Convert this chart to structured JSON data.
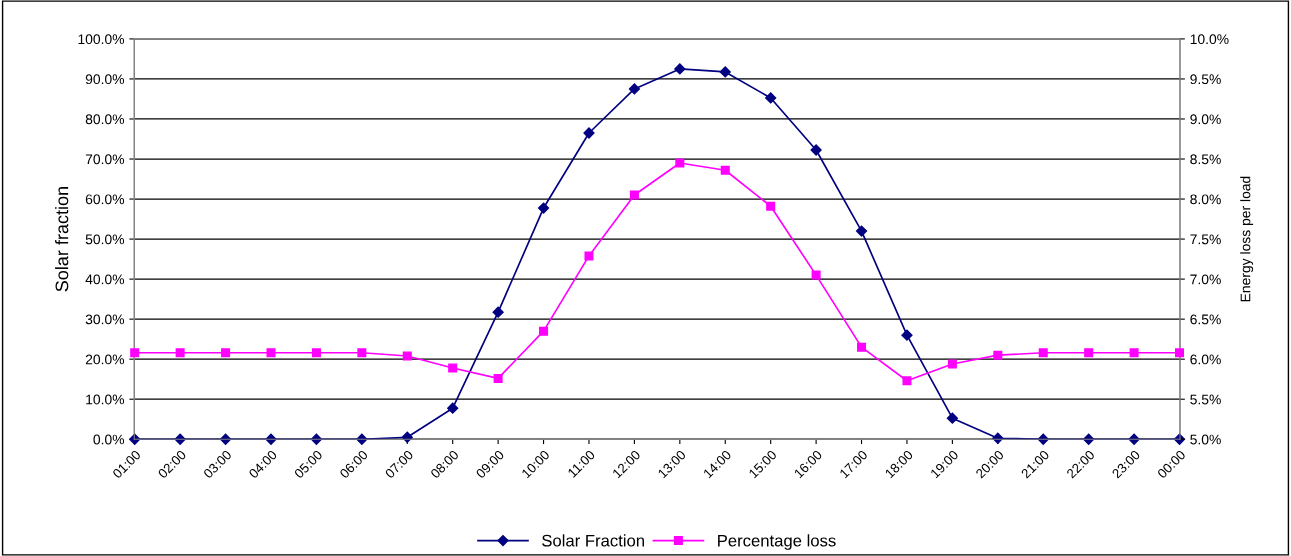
{
  "chart_data": {
    "type": "line",
    "ylabel": "Solar fraction",
    "y2label": "Energy loss per load",
    "categories": [
      "01:00",
      "02:00",
      "03:00",
      "04:00",
      "05:00",
      "06:00",
      "07:00",
      "08:00",
      "09:00",
      "10:00",
      "11:00",
      "12:00",
      "13:00",
      "14:00",
      "15:00",
      "16:00",
      "17:00",
      "18:00",
      "19:00",
      "20:00",
      "21:00",
      "22:00",
      "23:00",
      "00:00"
    ],
    "series": [
      {
        "name": "Solar Fraction",
        "color": "#000080",
        "marker": "diamond",
        "values": [
          0,
          0,
          0,
          0,
          0,
          0,
          0.5,
          7.75,
          31.75,
          57.75,
          76.5,
          87.5,
          92.5,
          91.75,
          85.25,
          72.25,
          52,
          26,
          5.25,
          0.25,
          0,
          0,
          0,
          0
        ]
      },
      {
        "name": "Percentage loss",
        "color": "#ff00ff",
        "marker": "square",
        "axis": "y2",
        "values": [
          6.08,
          6.08,
          6.08,
          6.08,
          6.08,
          6.08,
          6.04,
          5.89,
          5.76,
          6.35,
          7.29,
          8.05,
          8.45,
          8.36,
          7.91,
          7.05,
          6.15,
          5.73,
          5.94,
          6.05,
          6.08,
          6.08,
          6.08,
          6.08
        ]
      }
    ],
    "ylim": [
      0,
      100
    ],
    "yticks": [
      {
        "value": 0,
        "label": "0.0%"
      },
      {
        "value": 10,
        "label": "10.0%"
      },
      {
        "value": 20,
        "label": "20.0%"
      },
      {
        "value": 30,
        "label": "30.0%"
      },
      {
        "value": 40,
        "label": "40.0%"
      },
      {
        "value": 50,
        "label": "50.0%"
      },
      {
        "value": 60,
        "label": "60.0%"
      },
      {
        "value": 70,
        "label": "70.0%"
      },
      {
        "value": 80,
        "label": "80.0%"
      },
      {
        "value": 90,
        "label": "90.0%"
      },
      {
        "value": 100,
        "label": "100.0%"
      }
    ],
    "y2lim": [
      5,
      10
    ],
    "y2ticks": [
      {
        "value": 5,
        "label": "5.0%"
      },
      {
        "value": 5.5,
        "label": "5.5%"
      },
      {
        "value": 6,
        "label": "6.0%"
      },
      {
        "value": 6.5,
        "label": "6.5%"
      },
      {
        "value": 7,
        "label": "7.0%"
      },
      {
        "value": 7.5,
        "label": "7.5%"
      },
      {
        "value": 8,
        "label": "8.0%"
      },
      {
        "value": 8.5,
        "label": "8.5%"
      },
      {
        "value": 9,
        "label": "9.0%"
      },
      {
        "value": 9.5,
        "label": "9.5%"
      },
      {
        "value": 10,
        "label": "10.0%"
      }
    ],
    "grid": "y",
    "legend": "bottom",
    "line_style": "solid"
  }
}
